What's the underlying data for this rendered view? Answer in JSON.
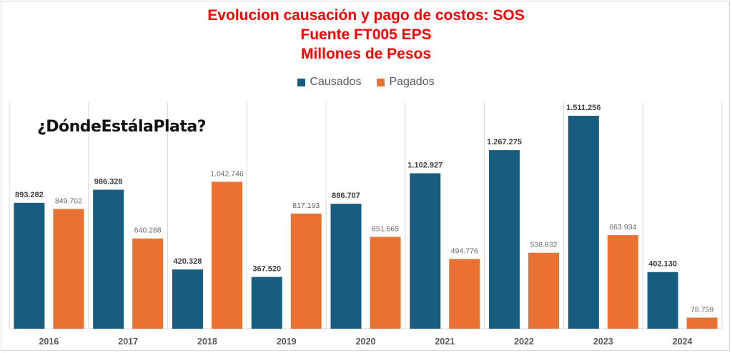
{
  "chart_data": {
    "type": "bar",
    "title_lines": [
      "Evolucion causación y pago de costos: SOS",
      "Fuente FT005 EPS",
      "Millones de Pesos"
    ],
    "xlabel": "",
    "ylabel": "",
    "categories": [
      "2016",
      "2017",
      "2018",
      "2019",
      "2020",
      "2021",
      "2022",
      "2023",
      "2024"
    ],
    "series": [
      {
        "name": "Causados",
        "color": "#175d80",
        "values": [
          893282,
          986328,
          420328,
          367520,
          886707,
          1102927,
          1267275,
          1511256,
          402130
        ],
        "labels": [
          "893.282",
          "986.328",
          "420.328",
          "367.520",
          "886.707",
          "1.102.927",
          "1.267.275",
          "1.511.256",
          "402.130"
        ]
      },
      {
        "name": "Pagados",
        "color": "#e97132",
        "values": [
          849702,
          640288,
          1042746,
          817193,
          651665,
          494776,
          538832,
          663934,
          78759
        ],
        "labels": [
          "849.702",
          "640.288",
          "1.042.746",
          "817.193",
          "651.665",
          "494.776",
          "538.832",
          "663.934",
          "78.759"
        ]
      }
    ],
    "ylim": [
      0,
      1511256
    ],
    "y_axis_visible": false,
    "grid": "vertical category separators",
    "legend_position": "top-center",
    "watermark": "¿DóndeEstálaPlata?"
  }
}
